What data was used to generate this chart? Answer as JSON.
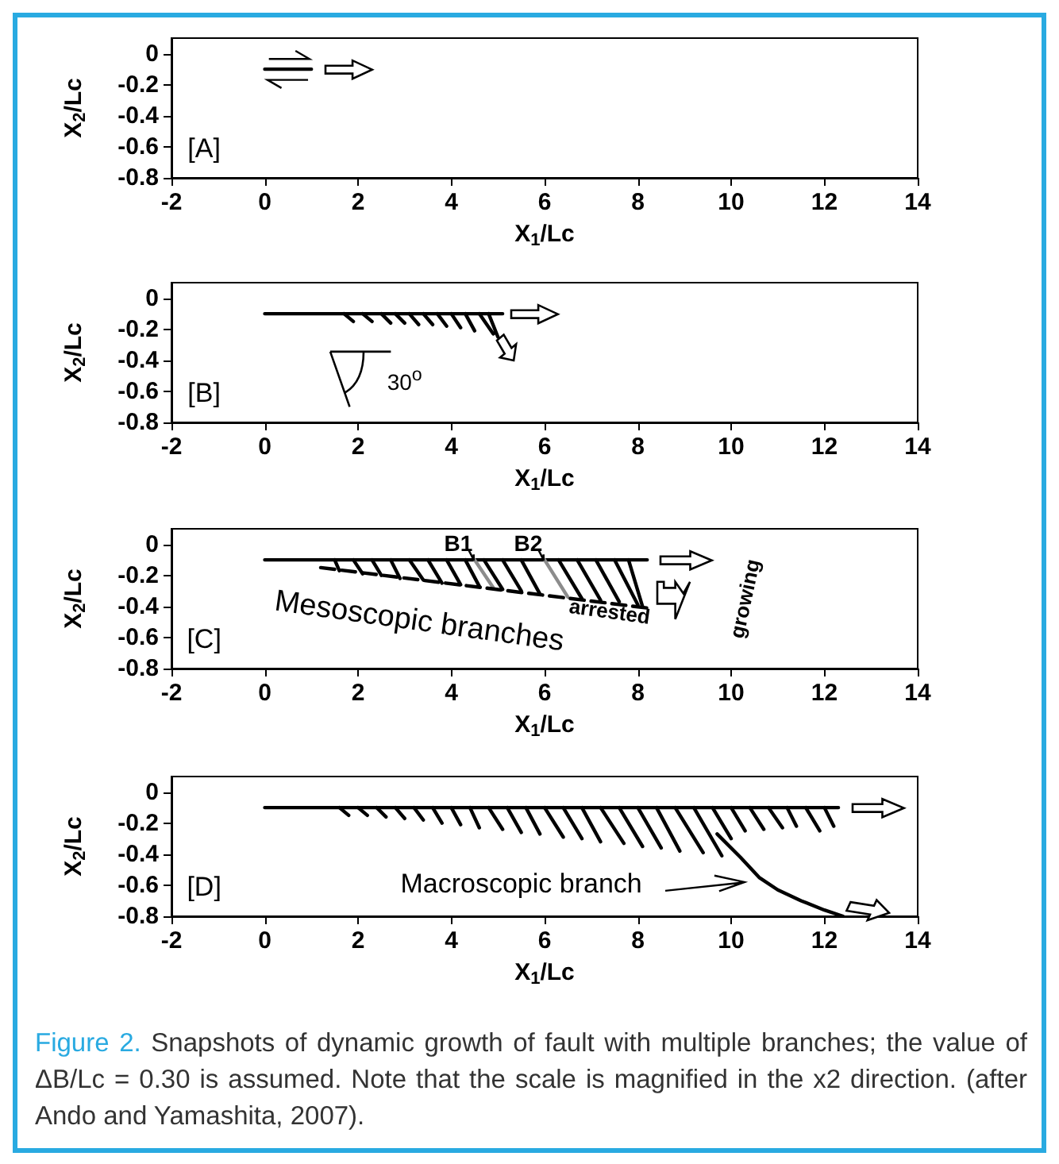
{
  "chart_data": [
    {
      "type": "line",
      "xlabel": "X$_{1}$/Lc",
      "ylabel": "X$_{2}$/Lc",
      "xlim": [
        -2,
        14
      ],
      "ylim": [
        -0.8,
        0.1
      ],
      "xticks": [
        -2,
        0,
        2,
        4,
        6,
        8,
        10,
        12,
        14
      ],
      "yticks": [
        -0.8,
        -0.6,
        -0.4,
        -0.2,
        0
      ],
      "marker": "none",
      "series": [
        {
          "color": "#000000",
          "x": [
            0,
            1
          ],
          "values": [
            -0.1,
            -0.1
          ]
        }
      ],
      "annotations": [
        "[A]"
      ]
    },
    {
      "type": "line",
      "xlabel": "X$_{1}$/Lc",
      "ylabel": "X$_{2}$/Lc",
      "xlim": [
        -2,
        14
      ],
      "ylim": [
        -0.8,
        0.1
      ],
      "xticks": [
        -2,
        0,
        2,
        4,
        6,
        8,
        10,
        12,
        14
      ],
      "yticks": [
        -0.8,
        -0.6,
        -0.4,
        -0.2,
        0
      ],
      "marker": "none",
      "series": [
        {
          "color": "#000000",
          "x": [
            0,
            5.1
          ],
          "values": [
            -0.1,
            -0.1
          ]
        },
        {
          "color": "#000000",
          "x": [
            1.7,
            1.9,
            null,
            2.1,
            2.3,
            null,
            2.5,
            2.7,
            null,
            2.8,
            3.0,
            null,
            3.1,
            3.3,
            null,
            3.4,
            3.6,
            null,
            3.7,
            3.9,
            null,
            4.0,
            4.2,
            null,
            4.3,
            4.5,
            null,
            4.6,
            4.9,
            null,
            4.8,
            5.0
          ],
          "values": [
            -0.1,
            -0.15,
            null,
            -0.1,
            -0.15,
            null,
            -0.1,
            -0.16,
            null,
            -0.1,
            -0.16,
            null,
            -0.1,
            -0.17,
            null,
            -0.1,
            -0.17,
            null,
            -0.1,
            -0.18,
            null,
            -0.1,
            -0.19,
            null,
            -0.1,
            -0.21,
            null,
            -0.1,
            -0.23,
            null,
            -0.1,
            -0.25
          ]
        }
      ],
      "annotations": [
        "30$^{o}$",
        "[B]"
      ]
    },
    {
      "type": "line",
      "xlabel": "X$_{1}$/Lc",
      "ylabel": "X$_{2}$/Lc",
      "xlim": [
        -2,
        14
      ],
      "ylim": [
        -0.8,
        0.1
      ],
      "xticks": [
        -2,
        0,
        2,
        4,
        6,
        8,
        10,
        12,
        14
      ],
      "yticks": [
        -0.8,
        -0.6,
        -0.4,
        -0.2,
        0
      ],
      "marker": "none",
      "series": [
        {
          "color": "#000000",
          "x": [
            0,
            8.2
          ],
          "values": [
            -0.1,
            -0.1
          ]
        },
        {
          "color": "#000000",
          "x": [
            1.5,
            1.6,
            null,
            1.9,
            2.1,
            null,
            2.3,
            2.5,
            null,
            2.7,
            2.9,
            null,
            3.1,
            3.4,
            null,
            3.5,
            3.8,
            null,
            3.9,
            4.2,
            null,
            4.3,
            4.6,
            null,
            4.7,
            5.1,
            null,
            5.1,
            5.5,
            null,
            5.5,
            5.9,
            null,
            6.3,
            6.8,
            null,
            6.7,
            7.2,
            null,
            7.1,
            7.6,
            null,
            7.5,
            8.0,
            null,
            7.8,
            8.1
          ],
          "values": [
            -0.1,
            -0.17,
            null,
            -0.1,
            -0.19,
            null,
            -0.1,
            -0.2,
            null,
            -0.1,
            -0.22,
            null,
            -0.1,
            -0.23,
            null,
            -0.1,
            -0.25,
            null,
            -0.1,
            -0.26,
            null,
            -0.1,
            -0.27,
            null,
            -0.1,
            -0.29,
            null,
            -0.1,
            -0.3,
            null,
            -0.1,
            -0.32,
            null,
            -0.1,
            -0.35,
            null,
            -0.1,
            -0.36,
            null,
            -0.1,
            -0.37,
            null,
            -0.1,
            -0.39,
            null,
            -0.1,
            -0.4
          ]
        },
        {
          "color": "#8c8c8c",
          "x": [
            4.5,
            4.9,
            null,
            6.0,
            6.5
          ],
          "values": [
            -0.1,
            -0.28,
            null,
            -0.1,
            -0.34
          ]
        },
        {
          "color": "#000000",
          "line_style": "dashed",
          "x": [
            1.2,
            8.2
          ],
          "values": [
            -0.15,
            -0.41
          ]
        }
      ],
      "annotations": [
        {
          "text": "B1",
          "x": 4.5,
          "y": -0.1
        },
        {
          "text": "B2",
          "x": 6.0,
          "y": -0.1
        },
        "arrested",
        "Mesoscopic branches",
        "growing",
        "[C]"
      ]
    },
    {
      "type": "line",
      "xlabel": "X$_{1}$/Lc",
      "ylabel": "X$_{2}$/Lc",
      "xlim": [
        -2,
        14
      ],
      "ylim": [
        -0.8,
        0.1
      ],
      "xticks": [
        -2,
        0,
        2,
        4,
        6,
        8,
        10,
        12,
        14
      ],
      "yticks": [
        -0.8,
        -0.6,
        -0.4,
        -0.2,
        0
      ],
      "marker": "none",
      "series": [
        {
          "color": "#000000",
          "x": [
            0,
            12.3
          ],
          "values": [
            -0.1,
            -0.1
          ]
        },
        {
          "color": "#000000",
          "x": [
            1.6,
            1.8,
            null,
            2.0,
            2.2,
            null,
            2.4,
            2.6,
            null,
            2.8,
            3.0,
            null,
            3.2,
            3.4,
            null,
            3.6,
            3.8,
            null,
            4.0,
            4.2,
            null,
            4.4,
            4.6,
            null,
            4.8,
            5.1,
            null,
            5.2,
            5.5,
            null,
            5.6,
            5.9,
            null,
            6.0,
            6.4,
            null,
            6.4,
            6.8,
            null,
            6.8,
            7.2,
            null,
            7.2,
            7.7,
            null,
            7.6,
            8.1,
            null,
            8.0,
            8.5,
            null,
            8.4,
            8.9,
            null,
            8.8,
            9.4,
            null,
            9.2,
            9.8,
            null,
            9.6,
            10.0,
            null,
            10.0,
            10.3,
            null,
            10.4,
            10.7,
            null,
            10.8,
            11.1,
            null,
            11.2,
            11.4,
            null,
            11.6,
            11.9,
            null,
            12.0,
            12.2
          ],
          "values": [
            -0.1,
            -0.15,
            null,
            -0.1,
            -0.15,
            null,
            -0.1,
            -0.16,
            null,
            -0.1,
            -0.17,
            null,
            -0.1,
            -0.18,
            null,
            -0.1,
            -0.2,
            null,
            -0.1,
            -0.21,
            null,
            -0.1,
            -0.23,
            null,
            -0.1,
            -0.24,
            null,
            -0.1,
            -0.26,
            null,
            -0.1,
            -0.27,
            null,
            -0.1,
            -0.29,
            null,
            -0.1,
            -0.3,
            null,
            -0.1,
            -0.32,
            null,
            -0.1,
            -0.33,
            null,
            -0.1,
            -0.35,
            null,
            -0.1,
            -0.36,
            null,
            -0.1,
            -0.38,
            null,
            -0.1,
            -0.39,
            null,
            -0.1,
            -0.41,
            null,
            -0.1,
            -0.3,
            null,
            -0.1,
            -0.25,
            null,
            -0.1,
            -0.24,
            null,
            -0.1,
            -0.23,
            null,
            -0.1,
            -0.22,
            null,
            -0.1,
            -0.25,
            null,
            -0.1,
            -0.22
          ]
        },
        {
          "color": "#000000",
          "x": [
            9.7,
            10.2,
            10.6,
            11.0,
            11.5,
            12.0,
            12.4
          ],
          "values": [
            -0.27,
            -0.42,
            -0.55,
            -0.63,
            -0.7,
            -0.76,
            -0.8
          ]
        }
      ],
      "annotations": [
        "[D]",
        "Macroscopic branch",
        "Figure 2.",
        "Snapshots of dynamic growth of fault with multiple branches; the value of ΔB/Lc = 0.30 is assumed. Note that the scale is magnified in the x2 direction.  (after Ando and Yamashita, 2007)."
      ]
    }
  ]
}
